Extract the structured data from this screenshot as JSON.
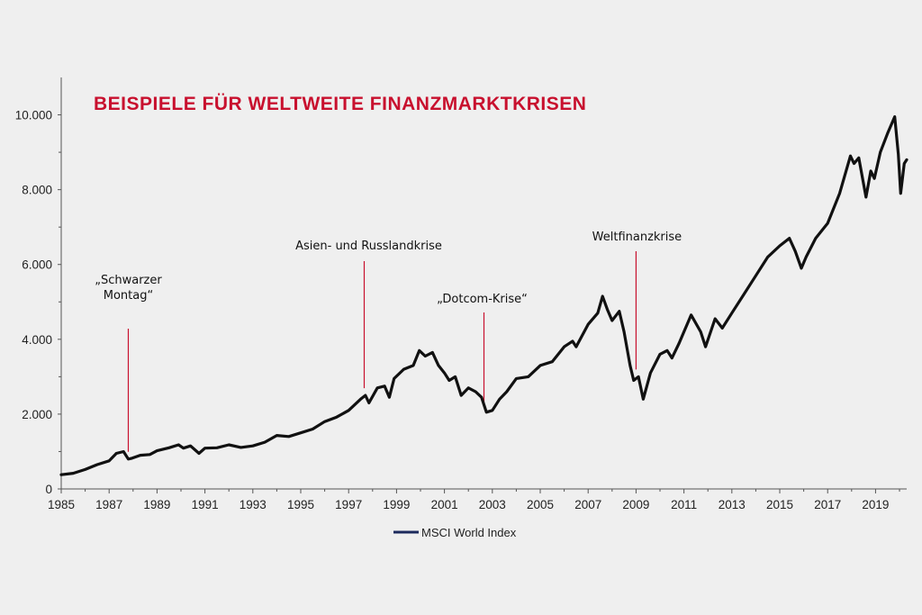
{
  "chart_data": {
    "type": "line",
    "title": "BEISPIELE FÜR WELTWEITE FINANZMARKTKRISEN",
    "xlabel": "",
    "ylabel": "",
    "xlim": [
      1985,
      2020.3
    ],
    "ylim": [
      0,
      11000
    ],
    "x_ticks": [
      1985,
      1987,
      1989,
      1991,
      1993,
      1995,
      1997,
      1999,
      2001,
      2003,
      2005,
      2007,
      2009,
      2011,
      2013,
      2015,
      2017,
      2019
    ],
    "x_tick_labels": [
      "1985",
      "1987",
      "1989",
      "1991",
      "1993",
      "1995",
      "1997",
      "1999",
      "2001",
      "2003",
      "2005",
      "2007",
      "2009",
      "2011",
      "2013",
      "2015",
      "2017",
      "2019"
    ],
    "y_ticks": [
      0,
      2000,
      4000,
      6000,
      8000,
      10000
    ],
    "y_tick_labels": [
      "0",
      "2.000",
      "4.000",
      "6.000",
      "8.000",
      "10.000"
    ],
    "legend": {
      "position": "bottom-center",
      "entries": [
        "MSCI World Index"
      ]
    },
    "grid": false,
    "colors": {
      "line": "#111111",
      "legend_swatch": "#1c2a5c",
      "annotation": "#c8102e",
      "title": "#c8102e",
      "background": "#efefef"
    },
    "series": [
      {
        "name": "MSCI World Index",
        "x": [
          1985.0,
          1985.5,
          1986.0,
          1986.5,
          1987.0,
          1987.3,
          1987.6,
          1987.8,
          1987.95,
          1988.3,
          1988.7,
          1989.0,
          1989.5,
          1989.9,
          1990.1,
          1990.4,
          1990.75,
          1991.0,
          1991.5,
          1992.0,
          1992.5,
          1993.0,
          1993.5,
          1994.0,
          1994.5,
          1995.0,
          1995.5,
          1996.0,
          1996.5,
          1997.0,
          1997.5,
          1997.7,
          1997.85,
          1998.2,
          1998.5,
          1998.7,
          1998.9,
          1999.3,
          1999.7,
          1999.95,
          2000.2,
          2000.5,
          2000.75,
          2001.0,
          2001.2,
          2001.45,
          2001.7,
          2002.0,
          2002.3,
          2002.55,
          2002.75,
          2003.0,
          2003.3,
          2003.6,
          2004.0,
          2004.5,
          2005.0,
          2005.5,
          2006.0,
          2006.35,
          2006.5,
          2007.0,
          2007.4,
          2007.6,
          2007.8,
          2008.0,
          2008.3,
          2008.5,
          2008.75,
          2008.9,
          2009.1,
          2009.3,
          2009.6,
          2010.0,
          2010.3,
          2010.5,
          2010.8,
          2011.0,
          2011.3,
          2011.7,
          2011.9,
          2012.3,
          2012.6,
          2013.0,
          2013.5,
          2014.0,
          2014.5,
          2015.0,
          2015.4,
          2015.65,
          2015.9,
          2016.1,
          2016.5,
          2017.0,
          2017.5,
          2017.95,
          2018.1,
          2018.3,
          2018.6,
          2018.8,
          2018.95,
          2019.2,
          2019.5,
          2019.8,
          2019.95,
          2020.05,
          2020.2,
          2020.3
        ],
        "values": [
          380,
          420,
          520,
          650,
          750,
          950,
          1000,
          800,
          820,
          900,
          920,
          1020,
          1100,
          1180,
          1090,
          1150,
          950,
          1090,
          1100,
          1180,
          1110,
          1150,
          1250,
          1430,
          1400,
          1500,
          1600,
          1800,
          1920,
          2100,
          2400,
          2500,
          2300,
          2700,
          2750,
          2450,
          2950,
          3200,
          3300,
          3700,
          3550,
          3650,
          3300,
          3100,
          2900,
          3000,
          2500,
          2700,
          2600,
          2450,
          2050,
          2100,
          2400,
          2600,
          2950,
          3000,
          3300,
          3400,
          3800,
          3950,
          3800,
          4400,
          4700,
          5150,
          4800,
          4500,
          4750,
          4200,
          3300,
          2900,
          3000,
          2400,
          3100,
          3600,
          3700,
          3500,
          3900,
          4200,
          4650,
          4200,
          3800,
          4550,
          4300,
          4700,
          5200,
          5700,
          6200,
          6500,
          6700,
          6350,
          5900,
          6200,
          6700,
          7100,
          7900,
          8900,
          8700,
          8850,
          7800,
          8500,
          8300,
          9000,
          9500,
          9950,
          8950,
          7900,
          8700,
          8800
        ]
      }
    ],
    "annotations": [
      {
        "lines": [
          "„Schwarzer",
          "Montag“"
        ],
        "x": 1987.8
      },
      {
        "lines": [
          "Asien- und Russlandkrise"
        ],
        "x": 1997.65
      },
      {
        "lines": [
          "„Dotcom-Krise“"
        ],
        "x": 2002.65
      },
      {
        "lines": [
          "Weltfinanzkrise"
        ],
        "x": 2009.0
      }
    ]
  }
}
